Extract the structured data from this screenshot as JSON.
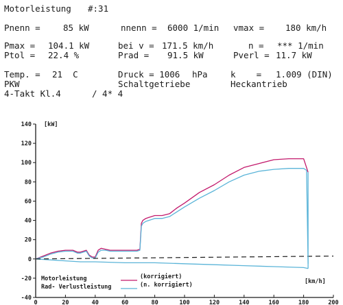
{
  "header": {
    "title": "Motorleistung",
    "number": "#:31",
    "pnenn_label": "Pnenn =",
    "pnenn_value": "85 kW",
    "nnenn_label": "nnenn =",
    "nnenn_value": "6000 1/min",
    "vmax_label": "vmax =",
    "vmax_value": "180 km/h",
    "pmax_label": "Pmax =",
    "pmax_value": "104.1 kW",
    "beiv_label": "bei v =",
    "beiv_value": "171.5 km/h",
    "n_label": "n =",
    "n_value": "*** 1/min",
    "ptol_label": "Ptol =",
    "ptol_value": "22.4 %",
    "prad_label": "Prad =",
    "prad_value": "91.5 kW",
    "pverl_label": "Pverl =",
    "pverl_value": "11.7 kW",
    "temp_label": "Temp. =",
    "temp_value": "21  C",
    "druck_label": "Druck = 1006",
    "druck_unit": "hPa",
    "k_label": "k    =",
    "k_value": "1.009 (DIN)",
    "vehicle": "PKW",
    "gearbox": "Schaltgetriebe",
    "drive": "Heckantrieb",
    "engine": "4-Takt Kl.4",
    "cyl": "/ 4* 4"
  },
  "colors": {
    "corrected": "#c2186b",
    "uncorrected": "#5ab4d8",
    "axis": "#1a1a1a"
  },
  "chart_data": {
    "type": "line",
    "xlabel": "[km/h]",
    "ylabel": "[kW]",
    "xlim": [
      0,
      200
    ],
    "ylim": [
      -40,
      140
    ],
    "xticks": [
      0,
      20,
      40,
      60,
      80,
      100,
      120,
      140,
      160,
      180,
      200
    ],
    "yticks": [
      -40,
      -20,
      0,
      20,
      40,
      60,
      80,
      100,
      120,
      140
    ],
    "legend": {
      "motor": "Motorleistung",
      "rad": "Rad- Verlustleistung",
      "corrected": "(korrigiert)",
      "uncorrected": "(n. korrigiert)"
    },
    "series": [
      {
        "name": "Motorleistung (korrigiert)",
        "x": [
          0,
          5,
          10,
          15,
          20,
          25,
          28,
          30,
          34,
          36,
          38,
          40,
          42,
          44,
          47,
          50,
          55,
          60,
          65,
          68,
          70,
          71,
          72,
          74,
          76,
          80,
          85,
          90,
          95,
          100,
          110,
          120,
          130,
          140,
          150,
          160,
          170,
          175,
          180,
          183
        ],
        "y": [
          0,
          3,
          6,
          8,
          9,
          9,
          7,
          7,
          9,
          4,
          2,
          2,
          9,
          11,
          10,
          9,
          9,
          9,
          9,
          9,
          10,
          37,
          40,
          42,
          43,
          45,
          45,
          47,
          53,
          58,
          69,
          77,
          87,
          95,
          99,
          103,
          104,
          104,
          104,
          90
        ]
      },
      {
        "name": "Motorleistung (n. korrigiert)",
        "x": [
          0,
          5,
          10,
          15,
          20,
          25,
          28,
          30,
          34,
          36,
          38,
          40,
          42,
          44,
          47,
          50,
          55,
          60,
          65,
          68,
          70,
          71,
          72,
          74,
          76,
          80,
          85,
          90,
          95,
          100,
          110,
          120,
          130,
          140,
          150,
          160,
          170,
          175,
          180,
          182,
          183
        ],
        "y": [
          0,
          2,
          5,
          7,
          8,
          8,
          6,
          6,
          8,
          3,
          1,
          1,
          7,
          9,
          9,
          8,
          8,
          8,
          8,
          8,
          9,
          34,
          37,
          39,
          40,
          42,
          42,
          44,
          49,
          54,
          63,
          71,
          80,
          87,
          91,
          93,
          94,
          94,
          94,
          92,
          -5
        ]
      },
      {
        "name": "Rad- Verlustleistung",
        "x": [
          0,
          10,
          20,
          30,
          40,
          60,
          80,
          100,
          120,
          140,
          160,
          180,
          183
        ],
        "y": [
          0,
          -1,
          -2,
          -3,
          -3,
          -4,
          -4,
          -5,
          -6,
          -7,
          -8,
          -9,
          -10
        ]
      },
      {
        "name": "Referenz",
        "x": [
          0,
          200
        ],
        "y": [
          0,
          3
        ]
      }
    ]
  }
}
